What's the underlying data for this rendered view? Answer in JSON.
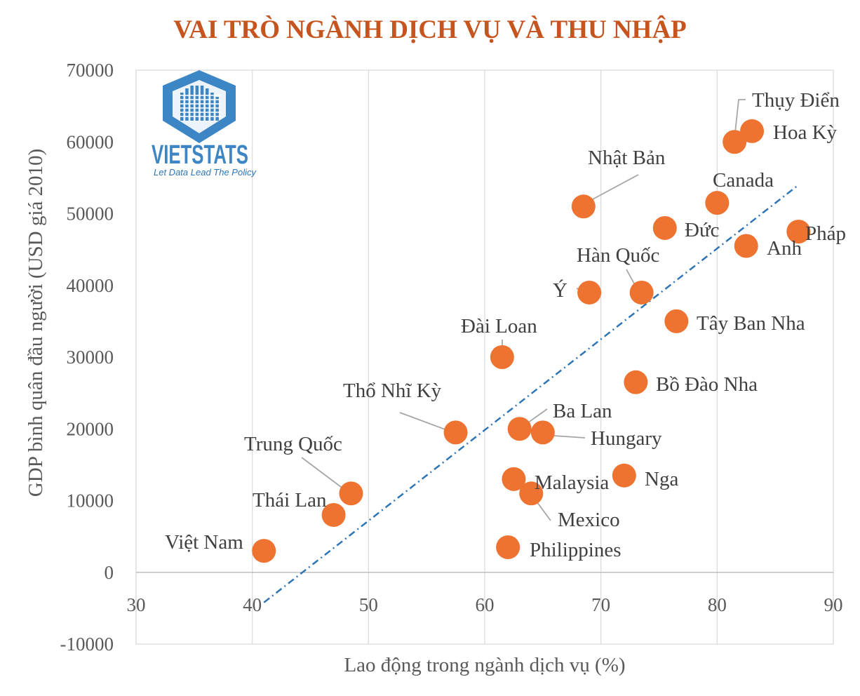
{
  "logo": {
    "name": "VIETSTATS",
    "tagline": "Let Data Lead The Policy",
    "color": "#3d86c6"
  },
  "chart_data": {
    "type": "scatter",
    "title": "VAI TRÒ NGÀNH DỊCH VỤ VÀ THU NHẬP",
    "xlabel": "Lao động trong ngành dịch vụ (%)",
    "ylabel": "GDP bình quân đầu người (USD giá 2010)",
    "xlim": [
      30,
      90
    ],
    "ylim": [
      -10000,
      70000
    ],
    "xticks": [
      "30",
      "40",
      "50",
      "60",
      "70",
      "80",
      "90"
    ],
    "yticks": [
      "-10000",
      "0",
      "10000",
      "20000",
      "30000",
      "40000",
      "50000",
      "60000",
      "70000"
    ],
    "grid": "vertical",
    "marker_color": "#ee7230",
    "trendline": {
      "type": "linear",
      "x": [
        41,
        87
      ],
      "y": [
        -4200,
        54000
      ],
      "color": "#2e75b6",
      "style": "dash-dot"
    },
    "points": [
      {
        "name": "Việt Nam",
        "x": 41,
        "y": 3000
      },
      {
        "name": "Thái Lan",
        "x": 47,
        "y": 8000
      },
      {
        "name": "Trung Quốc",
        "x": 48.5,
        "y": 11000
      },
      {
        "name": "Thổ Nhĩ Kỳ",
        "x": 57.5,
        "y": 19500
      },
      {
        "name": "Đài Loan",
        "x": 61.5,
        "y": 30000
      },
      {
        "name": "Philippines",
        "x": 62,
        "y": 3500
      },
      {
        "name": "Malaysia",
        "x": 62.5,
        "y": 13000
      },
      {
        "name": "Ba Lan",
        "x": 63,
        "y": 20000
      },
      {
        "name": "Mexico",
        "x": 64,
        "y": 11000
      },
      {
        "name": "Hungary",
        "x": 65,
        "y": 19500
      },
      {
        "name": "Nhật Bản",
        "x": 68.5,
        "y": 51000
      },
      {
        "name": "Ý",
        "x": 69,
        "y": 39000
      },
      {
        "name": "Nga",
        "x": 72,
        "y": 13500
      },
      {
        "name": "Bồ Đào Nha",
        "x": 73,
        "y": 26500
      },
      {
        "name": "Hàn Quốc",
        "x": 73.5,
        "y": 39000
      },
      {
        "name": "Đức",
        "x": 75.5,
        "y": 48000
      },
      {
        "name": "Tây Ban Nha",
        "x": 76.5,
        "y": 35000
      },
      {
        "name": "Canada",
        "x": 80,
        "y": 51500
      },
      {
        "name": "Thụy Điển",
        "x": 81.5,
        "y": 60000
      },
      {
        "name": "Anh",
        "x": 82.5,
        "y": 45500
      },
      {
        "name": "Hoa Kỳ",
        "x": 83,
        "y": 61500
      },
      {
        "name": "Pháp",
        "x": 87,
        "y": 47500
      }
    ]
  }
}
